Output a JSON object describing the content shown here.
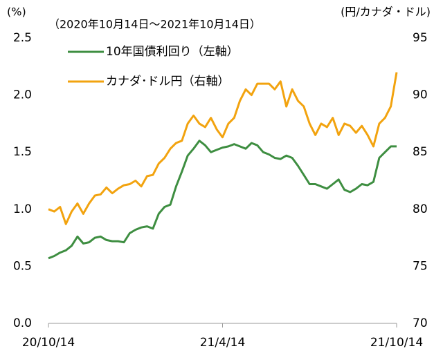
{
  "chart_data": {
    "type": "line",
    "subtitle": "（2020年10月14日～2021年10月14日）",
    "ylabel": "(%)",
    "y2label": "(円/カナダ・ドル)",
    "categories": [
      "20/10/14",
      null,
      null,
      null,
      null,
      null,
      null,
      null,
      null,
      null,
      null,
      null,
      null,
      null,
      null,
      null,
      null,
      null,
      null,
      null,
      null,
      null,
      null,
      null,
      null,
      null,
      null,
      null,
      null,
      null,
      "21/4/14",
      null,
      null,
      null,
      null,
      null,
      null,
      null,
      null,
      null,
      null,
      null,
      null,
      null,
      null,
      null,
      null,
      null,
      null,
      null,
      null,
      null,
      null,
      null,
      null,
      null,
      null,
      null,
      null,
      null,
      "21/10/14"
    ],
    "series": [
      {
        "name": "10年国債利回り（左軸）",
        "color": "#3e8e41",
        "axis": "y",
        "values": [
          0.57,
          0.59,
          0.62,
          0.64,
          0.68,
          0.76,
          0.7,
          0.71,
          0.75,
          0.76,
          0.73,
          0.72,
          0.72,
          0.71,
          0.79,
          0.82,
          0.84,
          0.85,
          0.83,
          0.96,
          1.02,
          1.04,
          1.2,
          1.33,
          1.47,
          1.53,
          1.6,
          1.56,
          1.5,
          1.52,
          1.54,
          1.55,
          1.57,
          1.55,
          1.53,
          1.58,
          1.56,
          1.5,
          1.48,
          1.45,
          1.44,
          1.47,
          1.45,
          1.38,
          1.3,
          1.22,
          1.22,
          1.2,
          1.18,
          1.22,
          1.26,
          1.17,
          1.15,
          1.18,
          1.22,
          1.21,
          1.24,
          1.45,
          1.5,
          1.55,
          1.55
        ]
      },
      {
        "name": "カナダ･ドル円（右軸）",
        "color": "#f2a30f",
        "axis": "y2",
        "values": [
          80.0,
          79.8,
          80.2,
          78.7,
          79.8,
          80.5,
          79.6,
          80.5,
          81.2,
          81.3,
          81.9,
          81.4,
          81.8,
          82.1,
          82.2,
          82.5,
          82.0,
          82.9,
          83.0,
          84.0,
          84.5,
          85.3,
          85.8,
          86.0,
          87.5,
          88.2,
          87.5,
          87.2,
          88.0,
          87.0,
          86.3,
          87.5,
          88.0,
          89.5,
          90.5,
          90.0,
          91.0,
          91.0,
          91.0,
          90.5,
          91.2,
          89.0,
          90.5,
          89.5,
          89.0,
          87.5,
          86.5,
          87.5,
          87.2,
          88.0,
          86.5,
          87.5,
          87.3,
          86.7,
          87.3,
          86.5,
          85.5,
          87.5,
          88.0,
          89.0,
          92.0
        ]
      }
    ],
    "ylim": [
      0,
      2.5
    ],
    "yticks": [
      {
        "value": 0,
        "label": "0.0"
      },
      0.5,
      {
        "value": 1,
        "label": "1.0"
      },
      1.5,
      {
        "value": 2,
        "label": "2.0"
      },
      2.5
    ],
    "y2lim": [
      70,
      95
    ],
    "y2ticks": [
      70,
      75,
      80,
      85,
      90,
      95
    ]
  }
}
